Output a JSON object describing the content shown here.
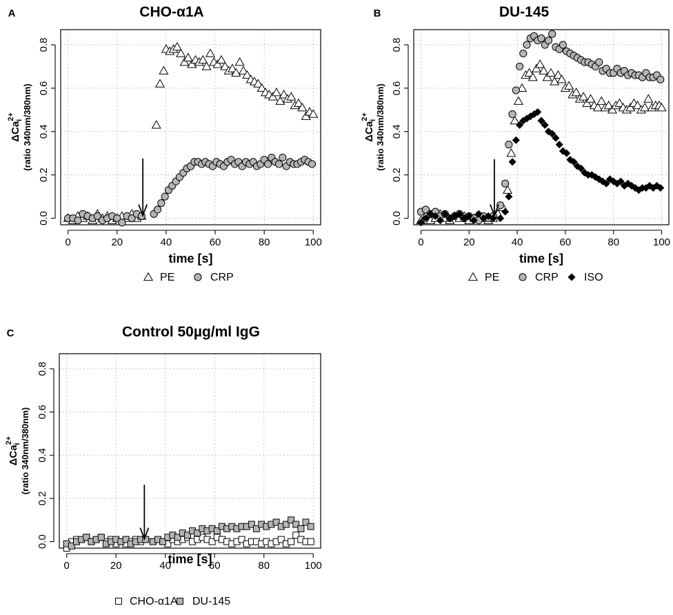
{
  "figure": {
    "panels": [
      {
        "panel_label": "A",
        "title": "CHO-α1A",
        "legend": [
          {
            "marker": "triangle",
            "label": "PE"
          },
          {
            "marker": "circle",
            "label": "CRP"
          }
        ]
      },
      {
        "panel_label": "B",
        "title": "DU-145",
        "legend": [
          {
            "marker": "triangle",
            "label": "PE"
          },
          {
            "marker": "circle",
            "label": "CRP"
          },
          {
            "marker": "diamond",
            "label": "ISO"
          }
        ]
      },
      {
        "panel_label": "C",
        "title": "Control 50µg/ml IgG",
        "legend": [
          {
            "marker": "square-open",
            "label": "CHO-α1A"
          },
          {
            "marker": "square-gray",
            "label": "DU-145"
          }
        ]
      }
    ],
    "xlabel": "time [s]",
    "ylabel_main": "ΔCa",
    "ylabel_sub": "i",
    "ylabel_sup": "2+",
    "ylabel_units": "(ratio 340nm/380nm)",
    "x_ticks": [
      "0",
      "20",
      "40",
      "60",
      "80",
      "100"
    ],
    "y_ticks": [
      "0.0",
      "0.2",
      "0.4",
      "0.6",
      "0.8"
    ],
    "colors": {
      "open_fill": "#ffffff",
      "gray_fill": "#b5b5b5",
      "black_fill": "#000000",
      "grid": "#c8c8c8"
    }
  },
  "chart_data": [
    {
      "type": "scatter",
      "title": "CHO-α1A",
      "xlabel": "time [s]",
      "ylabel": "ΔCai2+ (ratio 340nm/380nm)",
      "xlim": [
        -3,
        103
      ],
      "ylim": [
        -0.03,
        0.87
      ],
      "grid": true,
      "legend_position": "bottom",
      "stimulus_arrow_time": 30.5,
      "series": [
        {
          "name": "PE",
          "marker": "triangle",
          "x": [
            0,
            2,
            4,
            6,
            8,
            10,
            12,
            14,
            16,
            18,
            20,
            22,
            24,
            26,
            28,
            30,
            36,
            37.5,
            39,
            40,
            41.5,
            43,
            44.5,
            46,
            47.5,
            49,
            50.5,
            52,
            53.5,
            55,
            56.5,
            58,
            59.5,
            61,
            62.5,
            64,
            65.5,
            67,
            68.5,
            70,
            71.5,
            73,
            74.5,
            76,
            77.5,
            79,
            80.5,
            82,
            83.5,
            85,
            86.5,
            88,
            89.5,
            91,
            92.5,
            94,
            95.5,
            97,
            98.5,
            100
          ],
          "y": [
            0.0,
            -0.01,
            0.01,
            0.0,
            0.01,
            -0.01,
            0.02,
            0.0,
            0.01,
            -0.01,
            0.0,
            0.01,
            0.0,
            0.02,
            0.0,
            0.01,
            0.43,
            0.62,
            0.68,
            0.78,
            0.77,
            0.78,
            0.79,
            0.76,
            0.72,
            0.74,
            0.71,
            0.73,
            0.72,
            0.73,
            0.7,
            0.76,
            0.72,
            0.71,
            0.73,
            0.7,
            0.68,
            0.69,
            0.67,
            0.72,
            0.68,
            0.66,
            0.64,
            0.63,
            0.62,
            0.6,
            0.58,
            0.57,
            0.56,
            0.58,
            0.54,
            0.57,
            0.55,
            0.56,
            0.52,
            0.53,
            0.51,
            0.47,
            0.49,
            0.48
          ]
        },
        {
          "name": "CRP",
          "marker": "circle",
          "x": [
            0,
            2,
            4,
            6,
            8,
            10,
            12,
            14,
            16,
            18,
            20,
            22,
            24,
            26,
            28,
            30,
            35,
            36.5,
            38,
            39.5,
            41,
            42.5,
            44,
            45.5,
            47,
            48.5,
            50,
            51.5,
            53,
            54.5,
            56,
            57.5,
            59,
            60.5,
            62,
            63.5,
            65,
            66.5,
            68,
            69.5,
            71,
            72.5,
            74,
            75.5,
            77,
            78.5,
            80,
            81.5,
            83,
            84.5,
            86,
            87.5,
            89,
            90.5,
            92,
            93.5,
            95,
            96.5,
            98,
            99.5
          ],
          "y": [
            0.0,
            0.0,
            -0.01,
            0.02,
            0.01,
            0.0,
            0.01,
            -0.01,
            0.0,
            0.01,
            0.0,
            -0.02,
            0.01,
            0.0,
            0.02,
            0.01,
            0.02,
            0.04,
            0.07,
            0.1,
            0.13,
            0.15,
            0.17,
            0.19,
            0.21,
            0.23,
            0.24,
            0.26,
            0.26,
            0.25,
            0.26,
            0.25,
            0.24,
            0.26,
            0.25,
            0.24,
            0.26,
            0.27,
            0.25,
            0.26,
            0.24,
            0.26,
            0.25,
            0.26,
            0.24,
            0.25,
            0.27,
            0.25,
            0.28,
            0.26,
            0.25,
            0.28,
            0.24,
            0.26,
            0.25,
            0.25,
            0.26,
            0.27,
            0.26,
            0.25
          ]
        }
      ]
    },
    {
      "type": "scatter",
      "title": "DU-145",
      "xlabel": "time [s]",
      "ylabel": "ΔCai2+ (ratio 340nm/380nm)",
      "xlim": [
        -3,
        103
      ],
      "ylim": [
        -0.03,
        0.87
      ],
      "grid": true,
      "legend_position": "bottom",
      "stimulus_arrow_time": 30.5,
      "series": [
        {
          "name": "PE",
          "marker": "triangle",
          "x": [
            0,
            2,
            4,
            6,
            8,
            10,
            12,
            14,
            16,
            18,
            20,
            22,
            24,
            26,
            28,
            30,
            32,
            34,
            36,
            37.5,
            39,
            40.5,
            42,
            43.5,
            45,
            46.5,
            48,
            49.5,
            51,
            52.5,
            54,
            55.5,
            57,
            58.5,
            60,
            61.5,
            63,
            64.5,
            66,
            67.5,
            69,
            70.5,
            72,
            73.5,
            75,
            76.5,
            78,
            79.5,
            81,
            82.5,
            84,
            85.5,
            87,
            88.5,
            90,
            91.5,
            93,
            94.5,
            96,
            97.5,
            99,
            100
          ],
          "y": [
            -0.01,
            0.01,
            -0.01,
            0.0,
            0.02,
            0.0,
            -0.01,
            0.01,
            0.0,
            0.01,
            -0.01,
            0.0,
            0.01,
            0.0,
            -0.01,
            0.0,
            0.02,
            0.05,
            0.13,
            0.3,
            0.45,
            0.54,
            0.6,
            0.66,
            0.67,
            0.65,
            0.69,
            0.71,
            0.68,
            0.65,
            0.67,
            0.63,
            0.66,
            0.64,
            0.6,
            0.61,
            0.57,
            0.58,
            0.55,
            0.56,
            0.53,
            0.55,
            0.52,
            0.51,
            0.54,
            0.51,
            0.52,
            0.5,
            0.52,
            0.53,
            0.51,
            0.5,
            0.51,
            0.53,
            0.52,
            0.5,
            0.51,
            0.55,
            0.51,
            0.52,
            0.52,
            0.51
          ]
        },
        {
          "name": "CRP",
          "marker": "circle",
          "x": [
            0,
            2,
            4,
            6,
            8,
            10,
            12,
            14,
            16,
            18,
            20,
            22,
            24,
            26,
            28,
            30,
            33,
            35,
            36.5,
            38,
            39.5,
            41,
            42.5,
            44,
            45.5,
            47,
            48.5,
            50,
            51.5,
            53,
            54.5,
            56,
            57.5,
            59,
            60.5,
            62,
            63.5,
            65,
            66.5,
            68,
            69.5,
            71,
            72.5,
            74,
            75.5,
            77,
            78.5,
            80,
            81.5,
            83,
            84.5,
            86,
            87.5,
            89,
            90.5,
            92,
            93.5,
            95,
            96.5,
            98,
            99.5
          ],
          "y": [
            0.03,
            0.04,
            0.02,
            0.03,
            0.01,
            0.02,
            0.0,
            0.01,
            0.02,
            0.0,
            0.01,
            0.0,
            -0.01,
            0.01,
            0.0,
            0.01,
            0.06,
            0.16,
            0.34,
            0.48,
            0.59,
            0.7,
            0.76,
            0.8,
            0.83,
            0.84,
            0.82,
            0.83,
            0.8,
            0.82,
            0.85,
            0.79,
            0.78,
            0.8,
            0.77,
            0.76,
            0.75,
            0.74,
            0.73,
            0.72,
            0.72,
            0.71,
            0.7,
            0.72,
            0.68,
            0.69,
            0.67,
            0.67,
            0.69,
            0.67,
            0.68,
            0.66,
            0.67,
            0.66,
            0.66,
            0.65,
            0.67,
            0.65,
            0.65,
            0.66,
            0.64
          ]
        },
        {
          "name": "ISO",
          "marker": "diamond",
          "x": [
            0,
            2,
            4,
            6,
            8,
            10,
            12,
            14,
            16,
            18,
            20,
            22,
            24,
            26,
            28,
            30,
            33,
            35,
            36.5,
            38,
            39.5,
            41,
            42.5,
            44,
            45.5,
            47,
            48.5,
            50,
            51.5,
            53,
            54.5,
            56,
            57.5,
            59,
            60.5,
            62,
            63.5,
            65,
            66.5,
            68,
            69.5,
            71,
            72.5,
            74,
            75.5,
            77,
            78.5,
            80,
            81.5,
            83,
            84.5,
            86,
            87.5,
            89,
            90.5,
            92,
            93.5,
            95,
            96.5,
            98,
            99.5
          ],
          "y": [
            -0.02,
            0.0,
            0.02,
            0.01,
            -0.01,
            0.02,
            0.0,
            0.01,
            0.02,
            0.0,
            0.01,
            -0.01,
            0.02,
            0.0,
            0.01,
            0.0,
            0.0,
            0.03,
            0.1,
            0.26,
            0.36,
            0.43,
            0.45,
            0.46,
            0.47,
            0.48,
            0.49,
            0.45,
            0.43,
            0.4,
            0.39,
            0.37,
            0.34,
            0.31,
            0.3,
            0.27,
            0.26,
            0.24,
            0.23,
            0.21,
            0.2,
            0.2,
            0.19,
            0.18,
            0.17,
            0.16,
            0.18,
            0.17,
            0.16,
            0.17,
            0.15,
            0.16,
            0.15,
            0.14,
            0.13,
            0.14,
            0.14,
            0.15,
            0.14,
            0.15,
            0.14
          ]
        }
      ]
    },
    {
      "type": "scatter",
      "title": "Control 50µg/ml IgG",
      "xlabel": "time [s]",
      "ylabel": "ΔCai2+ (ratio 340nm/380nm)",
      "xlim": [
        -3,
        103
      ],
      "ylim": [
        -0.03,
        0.87
      ],
      "grid": true,
      "legend_position": "bottom",
      "stimulus_arrow_time": 31.5,
      "series": [
        {
          "name": "CHO-α1A",
          "marker": "square-open",
          "x": [
            0,
            2,
            4,
            6,
            8,
            10,
            12,
            14,
            16,
            18,
            20,
            22,
            24,
            26,
            28,
            30,
            32,
            35,
            37,
            39,
            41,
            43,
            45,
            47,
            49,
            51,
            53,
            55,
            57,
            59,
            61,
            63,
            65,
            67,
            69,
            71,
            73,
            75,
            77,
            79,
            81,
            83,
            85,
            87,
            89,
            91,
            93,
            95,
            97,
            99
          ],
          "y": [
            -0.03,
            0.0,
            0.01,
            0.01,
            0.02,
            0.0,
            0.01,
            0.02,
            0.0,
            0.01,
            -0.01,
            0.0,
            -0.01,
            0.0,
            0.01,
            0.0,
            0.01,
            0.0,
            0.01,
            0.0,
            -0.01,
            0.01,
            0.0,
            0.01,
            0.02,
            0.0,
            0.01,
            0.02,
            0.01,
            0.0,
            0.02,
            0.01,
            0.0,
            -0.01,
            0.0,
            0.01,
            -0.01,
            0.0,
            0.0,
            -0.01,
            0.0,
            -0.01,
            0.0,
            0.01,
            -0.01,
            0.0,
            0.03,
            0.01,
            0.0,
            0.0
          ]
        },
        {
          "name": "DU-145",
          "marker": "square-gray",
          "x": [
            0,
            2,
            4,
            6,
            8,
            10,
            12,
            14,
            16,
            18,
            20,
            22,
            24,
            26,
            28,
            30,
            32,
            35,
            37,
            39,
            41,
            43,
            45,
            47,
            49,
            51,
            53,
            55,
            57,
            59,
            61,
            63,
            65,
            67,
            69,
            71,
            73,
            75,
            77,
            79,
            81,
            83,
            85,
            87,
            89,
            91,
            93,
            95,
            97,
            99
          ],
          "y": [
            -0.01,
            -0.02,
            0.0,
            0.01,
            0.02,
            0.0,
            0.01,
            0.02,
            -0.01,
            0.0,
            0.01,
            0.0,
            0.01,
            -0.01,
            0.0,
            0.01,
            0.01,
            0.0,
            0.01,
            0.0,
            0.02,
            0.03,
            0.02,
            0.04,
            0.03,
            0.05,
            0.04,
            0.06,
            0.05,
            0.06,
            0.05,
            0.07,
            0.06,
            0.07,
            0.06,
            0.07,
            0.07,
            0.08,
            0.06,
            0.08,
            0.07,
            0.08,
            0.09,
            0.07,
            0.08,
            0.1,
            0.08,
            0.06,
            0.09,
            0.07
          ]
        }
      ]
    }
  ]
}
